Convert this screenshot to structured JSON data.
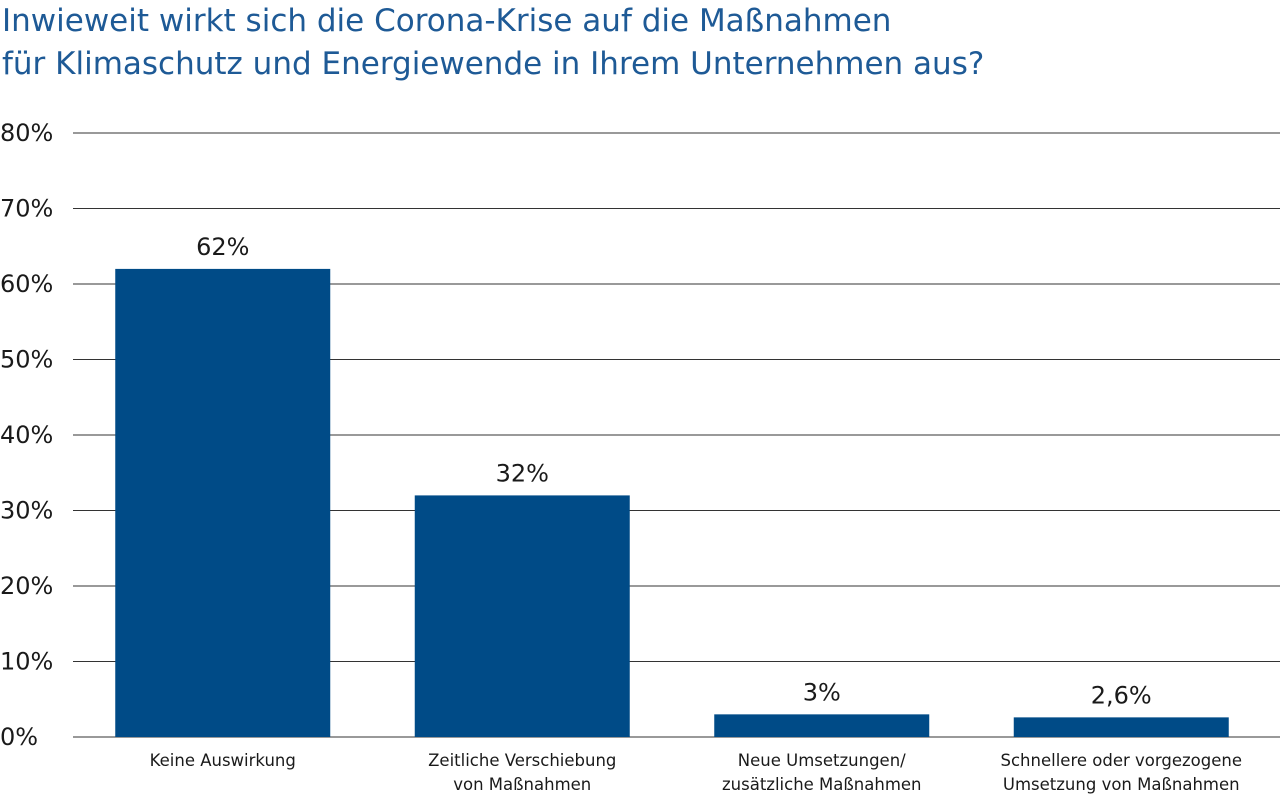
{
  "chart_data": {
    "type": "bar",
    "title_lines": [
      "Inwieweit wirkt sich die Corona-Krise auf die Maßnahmen",
      "für Klimaschutz und Energiewende in Ihrem Unternehmen aus?"
    ],
    "categories": [
      [
        "Keine Auswirkung"
      ],
      [
        "Zeitliche Verschiebung",
        "von Maßnahmen"
      ],
      [
        "Neue Umsetzungen/",
        "zusätzliche Maßnahmen"
      ],
      [
        "Schnellere oder vorgezogene",
        "Umsetzung von Maßnahmen"
      ]
    ],
    "values": [
      62,
      32,
      3,
      2.6
    ],
    "value_labels": [
      "62%",
      "32%",
      "3%",
      "2,6%"
    ],
    "ylim": [
      0,
      80
    ],
    "yticks": [
      0,
      10,
      20,
      30,
      40,
      50,
      60,
      70,
      80
    ],
    "ytick_labels": [
      "0%",
      "10%",
      "20%",
      "30%",
      "40%",
      "50%",
      "60%",
      "70%",
      "80%"
    ],
    "xlabel": "",
    "ylabel": "",
    "grid": true,
    "legend": "none",
    "colors": {
      "bar": "#004b87",
      "title": "#1e5a96",
      "grid": "#333333",
      "text": "#1a1a1a"
    }
  }
}
